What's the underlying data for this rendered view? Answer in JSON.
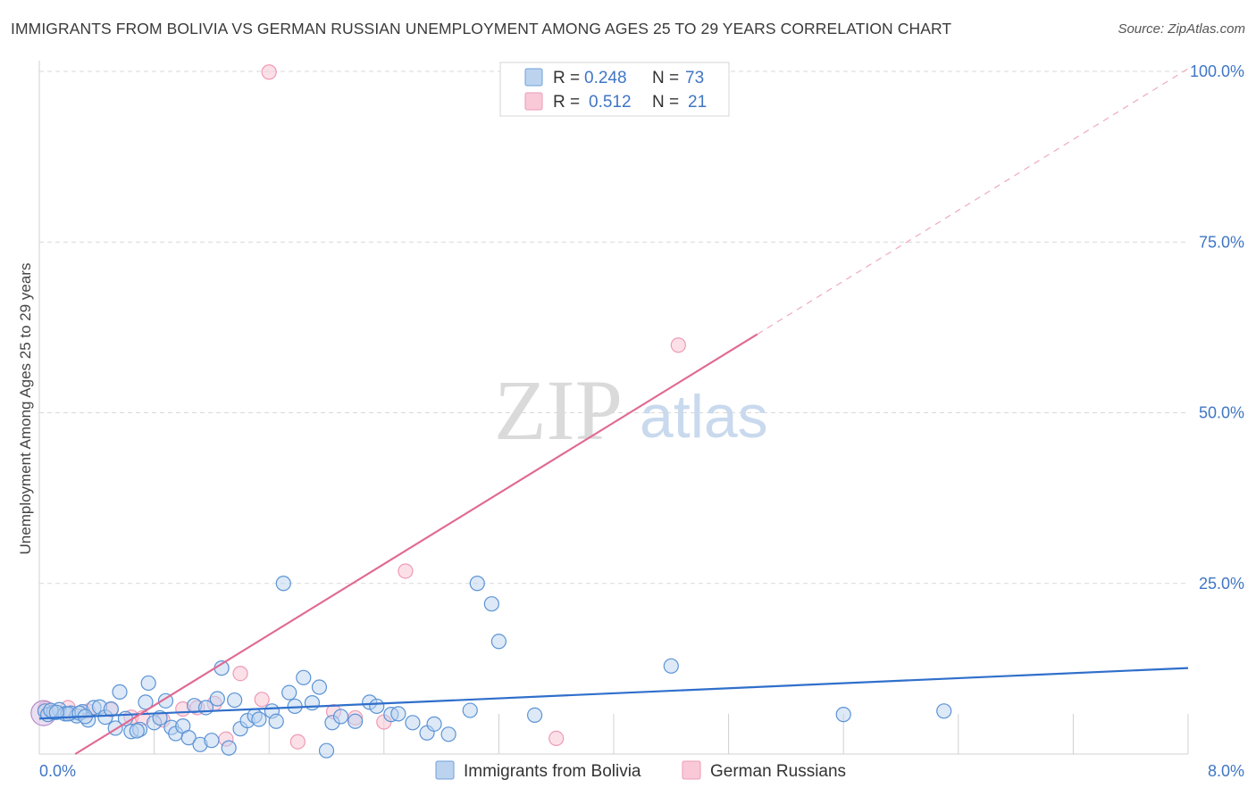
{
  "title": "IMMIGRANTS FROM BOLIVIA VS GERMAN RUSSIAN UNEMPLOYMENT AMONG AGES 25 TO 29 YEARS CORRELATION CHART",
  "source": "Source: ZipAtlas.com",
  "watermark": {
    "zip": "ZIP",
    "atlas": "atlas"
  },
  "legend": {
    "r_label": "R =",
    "n_label": "N =",
    "rows": [
      {
        "r": "0.248",
        "n": "73"
      },
      {
        "r": "0.512",
        "n": "21"
      }
    ]
  },
  "chart_data": {
    "type": "scatter",
    "title": "IMMIGRANTS FROM BOLIVIA VS GERMAN RUSSIAN UNEMPLOYMENT AMONG AGES 25 TO 29 YEARS CORRELATION CHART",
    "xlabel": "",
    "ylabel": "Unemployment Among Ages 25 to 29 years",
    "xlim": [
      0,
      8
    ],
    "ylim": [
      0,
      100
    ],
    "x_tick_labels": [
      {
        "value": 0,
        "label": "0.0%"
      },
      {
        "value": 8,
        "label": "8.0%"
      }
    ],
    "y_tick_labels": [
      {
        "value": 25,
        "label": "25.0%"
      },
      {
        "value": 50,
        "label": "50.0%"
      },
      {
        "value": 75,
        "label": "75.0%"
      },
      {
        "value": 100,
        "label": "100.0%"
      }
    ],
    "grid": true,
    "colors": {
      "bolivia": "#5b93d6",
      "bolivia_line": "#2f6fcb",
      "german": "#f0a3bd",
      "german_line": "#e06a92",
      "tick": "#3f76c4",
      "grid": "#d9d9d9"
    },
    "series": [
      {
        "name": "Immigrants from Bolivia",
        "r": 0.248,
        "n": 73,
        "trend": {
          "x0": 0,
          "y0": 5.2,
          "x1": 8,
          "y1": 12.6
        },
        "points": [
          [
            0.04,
            6.3
          ],
          [
            0.06,
            5.8
          ],
          [
            0.1,
            6.1
          ],
          [
            0.14,
            6.5
          ],
          [
            0.18,
            5.9
          ],
          [
            0.22,
            6.0
          ],
          [
            0.26,
            5.6
          ],
          [
            0.3,
            6.2
          ],
          [
            0.34,
            5.0
          ],
          [
            0.38,
            6.8
          ],
          [
            0.42,
            6.9
          ],
          [
            0.46,
            5.4
          ],
          [
            0.5,
            6.6
          ],
          [
            0.53,
            3.8
          ],
          [
            0.56,
            9.1
          ],
          [
            0.6,
            5.2
          ],
          [
            0.64,
            3.3
          ],
          [
            0.7,
            3.6
          ],
          [
            0.74,
            7.6
          ],
          [
            0.76,
            10.4
          ],
          [
            0.8,
            4.6
          ],
          [
            0.84,
            5.3
          ],
          [
            0.88,
            7.8
          ],
          [
            0.92,
            3.9
          ],
          [
            0.95,
            3.0
          ],
          [
            1.0,
            4.1
          ],
          [
            1.04,
            2.4
          ],
          [
            1.08,
            7.1
          ],
          [
            1.12,
            1.4
          ],
          [
            1.16,
            6.8
          ],
          [
            1.2,
            2.0
          ],
          [
            1.24,
            8.1
          ],
          [
            1.27,
            12.6
          ],
          [
            1.32,
            0.9
          ],
          [
            1.36,
            7.9
          ],
          [
            1.4,
            3.7
          ],
          [
            1.45,
            4.9
          ],
          [
            1.5,
            5.6
          ],
          [
            1.53,
            5.1
          ],
          [
            1.62,
            6.3
          ],
          [
            1.65,
            4.8
          ],
          [
            1.7,
            25.0
          ],
          [
            1.74,
            9.0
          ],
          [
            1.78,
            7.0
          ],
          [
            1.84,
            11.2
          ],
          [
            1.9,
            7.5
          ],
          [
            1.95,
            9.8
          ],
          [
            2.0,
            0.5
          ],
          [
            2.04,
            4.6
          ],
          [
            2.1,
            5.5
          ],
          [
            2.2,
            4.8
          ],
          [
            2.3,
            7.6
          ],
          [
            2.35,
            7.0
          ],
          [
            2.45,
            5.8
          ],
          [
            2.5,
            5.9
          ],
          [
            2.6,
            4.6
          ],
          [
            2.7,
            3.1
          ],
          [
            2.75,
            4.4
          ],
          [
            2.85,
            2.9
          ],
          [
            3.0,
            6.4
          ],
          [
            3.05,
            25.0
          ],
          [
            3.15,
            22.0
          ],
          [
            3.2,
            16.5
          ],
          [
            3.45,
            5.7
          ],
          [
            4.4,
            12.9
          ],
          [
            5.6,
            5.8
          ],
          [
            6.3,
            6.3
          ],
          [
            0.08,
            6.4
          ],
          [
            0.2,
            5.9
          ],
          [
            0.12,
            6.1
          ],
          [
            0.28,
            6.0
          ],
          [
            0.68,
            3.4
          ],
          [
            0.32,
            5.5
          ]
        ]
      },
      {
        "name": "German Russians",
        "r": 0.512,
        "n": 21,
        "trend": {
          "x0": 0.25,
          "y0": 0,
          "x1": 5.0,
          "y1": 61.5
        },
        "trend_extension": {
          "x0": 5.0,
          "y0": 61.5,
          "x1": 8.0,
          "y1": 100.4
        },
        "points": [
          [
            0.04,
            6.6
          ],
          [
            0.2,
            6.8
          ],
          [
            0.34,
            6.3
          ],
          [
            0.5,
            6.5
          ],
          [
            0.64,
            5.4
          ],
          [
            0.72,
            5.3
          ],
          [
            0.86,
            5.0
          ],
          [
            1.0,
            6.6
          ],
          [
            1.1,
            6.8
          ],
          [
            1.22,
            7.4
          ],
          [
            1.3,
            2.2
          ],
          [
            1.4,
            11.8
          ],
          [
            1.55,
            8.0
          ],
          [
            1.6,
            99.9
          ],
          [
            1.8,
            1.8
          ],
          [
            2.05,
            6.2
          ],
          [
            2.2,
            5.3
          ],
          [
            2.4,
            4.7
          ],
          [
            2.55,
            26.8
          ],
          [
            3.6,
            2.3
          ],
          [
            4.45,
            59.9
          ]
        ]
      }
    ]
  },
  "bottom_legend": [
    {
      "label": "Immigrants from Bolivia"
    },
    {
      "label": "German Russians"
    }
  ]
}
